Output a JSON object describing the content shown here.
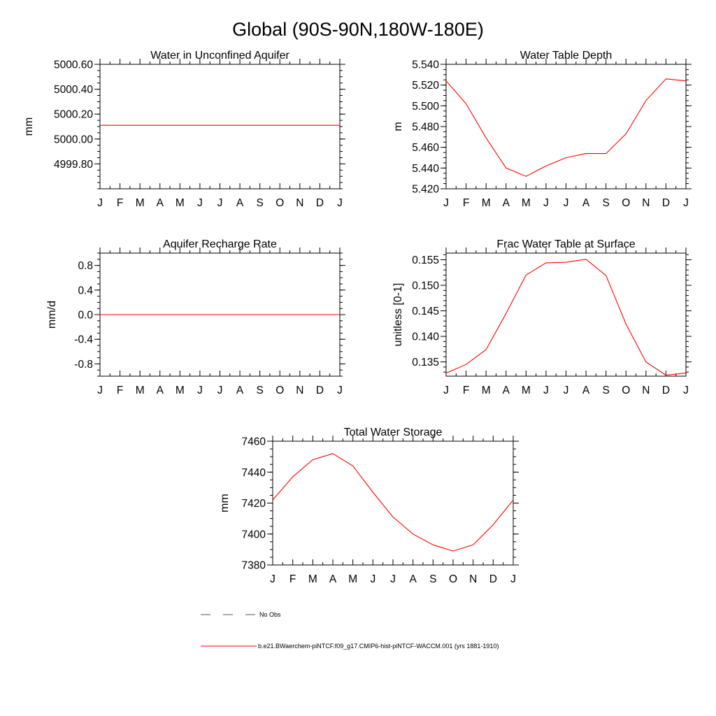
{
  "title": "Global (90S-90N,180W-180E)",
  "colors": {
    "model": "#ff0000",
    "obs": "#555555"
  },
  "legend": {
    "obs_label": "No Obs",
    "model_label": "b.e21.BWaerchem-piNTCF.f09_g17.CMIP6-hist-piNTCF-WACCM.001 (yrs 1881-1910)"
  },
  "chart_data": [
    {
      "type": "line",
      "title": "Water in Unconfined Aquifer",
      "ylabel": "mm",
      "categories": [
        "J",
        "F",
        "M",
        "A",
        "M",
        "J",
        "J",
        "A",
        "S",
        "O",
        "N",
        "D",
        "J"
      ],
      "ylim": [
        4999.6,
        5000.6
      ],
      "yticks": [
        4999.8,
        5000.0,
        5000.2,
        5000.4,
        5000.6
      ],
      "ytick_labels": [
        "4999.80",
        "5000.00",
        "5000.20",
        "5000.40",
        "5000.60"
      ],
      "yminor": 0.05,
      "series": [
        {
          "values": [
            5000.11,
            5000.11,
            5000.11,
            5000.11,
            5000.11,
            5000.11,
            5000.11,
            5000.11,
            5000.11,
            5000.11,
            5000.11,
            5000.11,
            5000.11
          ]
        }
      ]
    },
    {
      "type": "line",
      "title": "Water Table Depth",
      "ylabel": "m",
      "categories": [
        "J",
        "F",
        "M",
        "A",
        "M",
        "J",
        "J",
        "A",
        "S",
        "O",
        "N",
        "D",
        "J"
      ],
      "ylim": [
        5.42,
        5.54
      ],
      "yticks": [
        5.42,
        5.44,
        5.46,
        5.48,
        5.5,
        5.52,
        5.54
      ],
      "ytick_labels": [
        "5.420",
        "5.440",
        "5.460",
        "5.480",
        "5.500",
        "5.520",
        "5.540"
      ],
      "yminor": 0.005,
      "series": [
        {
          "values": [
            5.524,
            5.502,
            5.469,
            5.44,
            5.432,
            5.442,
            5.45,
            5.454,
            5.454,
            5.473,
            5.505,
            5.526,
            5.524
          ]
        }
      ]
    },
    {
      "type": "line",
      "title": "Aquifer Recharge Rate",
      "ylabel": "mm/d",
      "categories": [
        "J",
        "F",
        "M",
        "A",
        "M",
        "J",
        "J",
        "A",
        "S",
        "O",
        "N",
        "D",
        "J"
      ],
      "ylim": [
        -1.0,
        1.0
      ],
      "yticks": [
        -0.8,
        -0.4,
        0.0,
        0.4,
        0.8
      ],
      "ytick_labels": [
        "-0.8",
        "-0.4",
        "0.0",
        "0.4",
        "0.8"
      ],
      "yminor": 0.1,
      "series": [
        {
          "values": [
            0,
            0,
            0,
            0,
            0,
            0,
            0,
            0,
            0,
            0,
            0,
            0,
            0
          ]
        }
      ]
    },
    {
      "type": "line",
      "title": "Frac Water Table at Surface",
      "ylabel": "unitless [0-1]",
      "categories": [
        "J",
        "F",
        "M",
        "A",
        "M",
        "J",
        "J",
        "A",
        "S",
        "O",
        "N",
        "D",
        "J"
      ],
      "ylim": [
        0.1322,
        0.1563
      ],
      "yticks": [
        0.135,
        0.14,
        0.145,
        0.15,
        0.155
      ],
      "ytick_labels": [
        "0.135",
        "0.140",
        "0.145",
        "0.150",
        "0.155"
      ],
      "yminor": 0.001,
      "series": [
        {
          "values": [
            0.1328,
            0.1345,
            0.1374,
            0.1445,
            0.152,
            0.1544,
            0.1545,
            0.1551,
            0.1519,
            0.1424,
            0.135,
            0.1324,
            0.1328
          ]
        }
      ]
    },
    {
      "type": "line",
      "title": "Total Water Storage",
      "ylabel": "mm",
      "categories": [
        "J",
        "F",
        "M",
        "A",
        "M",
        "J",
        "J",
        "A",
        "S",
        "O",
        "N",
        "D",
        "J"
      ],
      "ylim": [
        7380,
        7460
      ],
      "yticks": [
        7380,
        7400,
        7420,
        7440,
        7460
      ],
      "ytick_labels": [
        "7380",
        "7400",
        "7420",
        "7440",
        "7460"
      ],
      "yminor": 5,
      "series": [
        {
          "values": [
            7422,
            7437,
            7448,
            7452,
            7444,
            7427,
            7411,
            7400,
            7393,
            7389,
            7393,
            7406,
            7422
          ]
        }
      ]
    }
  ]
}
